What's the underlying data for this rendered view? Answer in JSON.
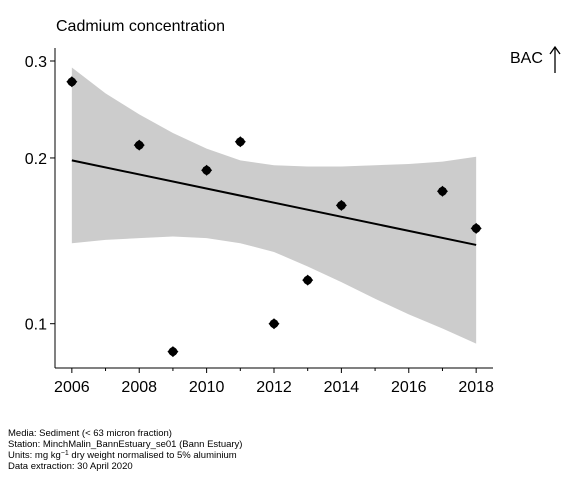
{
  "chart_data": {
    "type": "scatter",
    "title": "Cadmium concentration",
    "xlabel": "",
    "ylabel": "",
    "y_scale": "log",
    "xlim": [
      2005.5,
      2018.5
    ],
    "ylim": [
      0.087,
      0.3
    ],
    "x_ticks": [
      2006,
      2008,
      2010,
      2012,
      2014,
      2016,
      2018
    ],
    "x_tick_labels": [
      "2006",
      "2008",
      "2010",
      "2012",
      "2014",
      "2016",
      "2018"
    ],
    "y_ticks": [
      0.1,
      0.2,
      0.3
    ],
    "y_tick_labels": [
      "0.1",
      "0.2",
      "0.3"
    ],
    "grid": false,
    "legend": "none",
    "series": [
      {
        "x": [
          2006,
          2008,
          2009,
          2010,
          2011,
          2012,
          2013,
          2014,
          2017,
          2018
        ],
        "y": [
          0.275,
          0.211,
          0.089,
          0.19,
          0.214,
          0.1,
          0.12,
          0.164,
          0.174,
          0.149
        ]
      }
    ],
    "trend": {
      "x": [
        2006,
        2018
      ],
      "y": [
        0.198,
        0.139
      ]
    },
    "confidence_band": {
      "x": [
        2006,
        2007,
        2008,
        2009,
        2010,
        2011,
        2012,
        2013,
        2014,
        2015,
        2016,
        2017,
        2018
      ],
      "lower": [
        0.14,
        0.142,
        0.143,
        0.144,
        0.143,
        0.14,
        0.135,
        0.127,
        0.119,
        0.111,
        0.104,
        0.098,
        0.092
      ],
      "upper": [
        0.292,
        0.262,
        0.24,
        0.222,
        0.208,
        0.198,
        0.194,
        0.193,
        0.193,
        0.194,
        0.195,
        0.197,
        0.201
      ]
    },
    "annotation": "BAC"
  },
  "colors": {
    "points": "#000000",
    "trend": "#000000",
    "band": "#cccccc",
    "axis": "#000000"
  },
  "meta": {
    "media": "Media: Sediment (< 63 micron fraction)",
    "station": "Station: MinchMalin_BannEstuary_se01 (Bann Estuary)",
    "units_prefix": "Units:  mg kg",
    "units_sup": "−1",
    "units_suffix": " dry weight normalised to 5% aluminium",
    "extraction": "Data extraction: 30 April 2020"
  }
}
